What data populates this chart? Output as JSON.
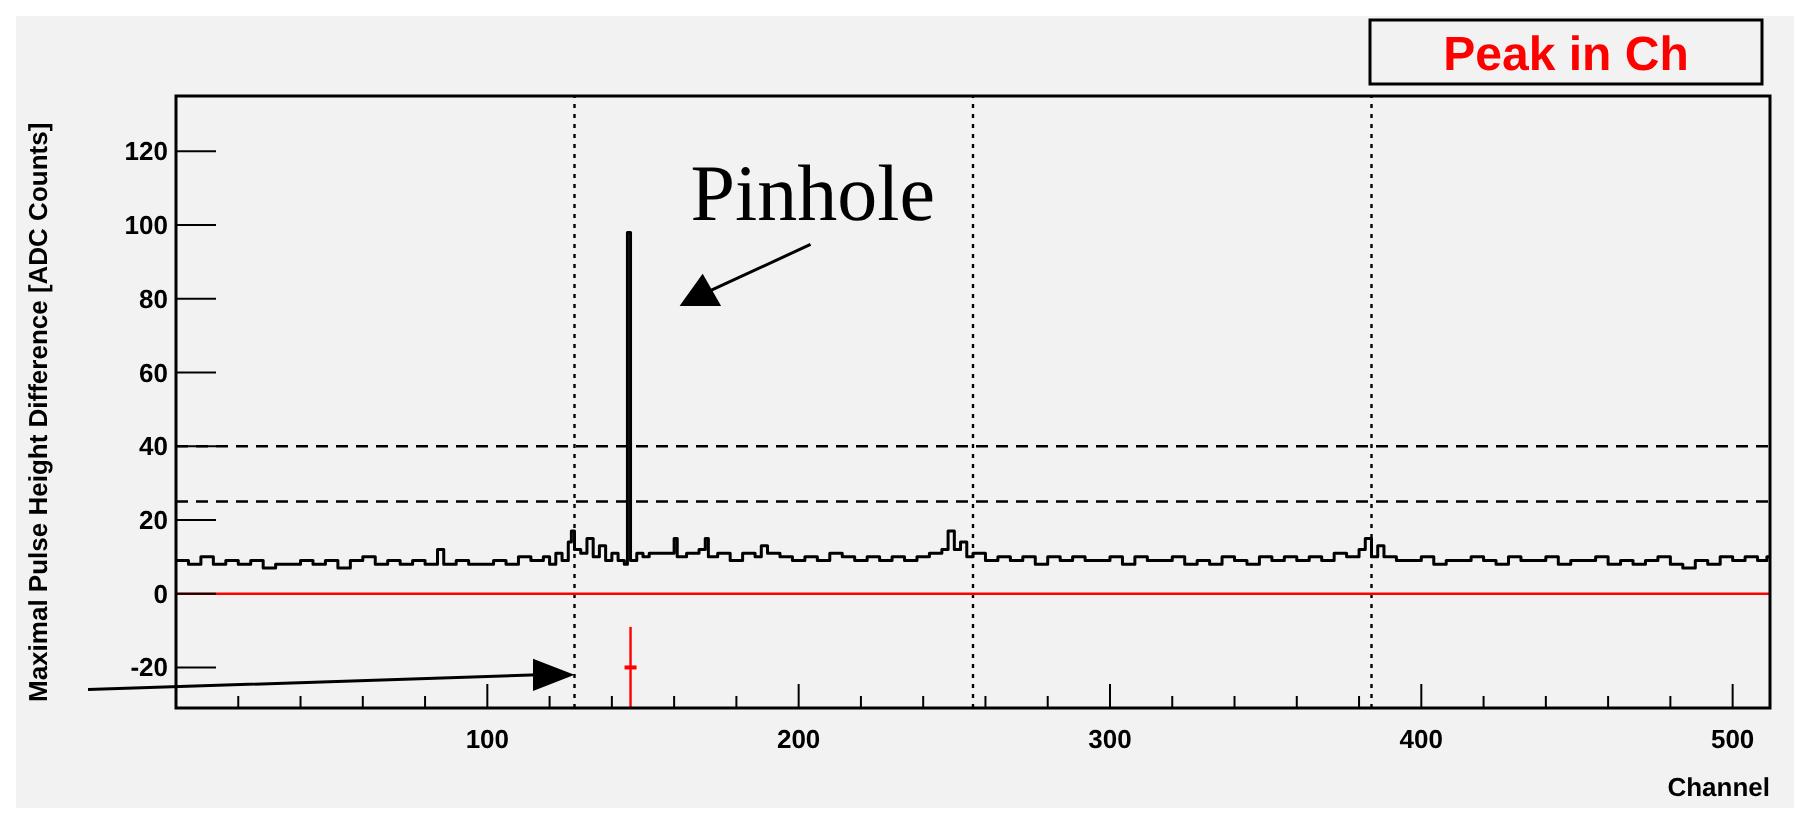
{
  "chart_data": {
    "type": "step",
    "xlabel": "Channel",
    "ylabel": "Maximal Pulse Height Difference [ADC Counts]",
    "xlim": [
      0,
      512
    ],
    "ylim": [
      -31,
      135
    ],
    "xticks": [
      {
        "value": 20,
        "label": null
      },
      {
        "value": 40,
        "label": null
      },
      {
        "value": 60,
        "label": null
      },
      {
        "value": 80,
        "label": null
      },
      100,
      {
        "value": 120,
        "label": null
      },
      {
        "value": 140,
        "label": null
      },
      {
        "value": 160,
        "label": null
      },
      {
        "value": 180,
        "label": null
      },
      200,
      {
        "value": 220,
        "label": null
      },
      {
        "value": 240,
        "label": null
      },
      {
        "value": 260,
        "label": null
      },
      {
        "value": 280,
        "label": null
      },
      300,
      {
        "value": 320,
        "label": null
      },
      {
        "value": 340,
        "label": null
      },
      {
        "value": 360,
        "label": null
      },
      {
        "value": 380,
        "label": null
      },
      400,
      {
        "value": 420,
        "label": null
      },
      {
        "value": 440,
        "label": null
      },
      {
        "value": 460,
        "label": null
      },
      {
        "value": 480,
        "label": null
      },
      500
    ],
    "yticks": [
      -20,
      0,
      20,
      40,
      60,
      80,
      100,
      120
    ],
    "series": [
      {
        "color": "#000000",
        "x": [
          0,
          4,
          8,
          12,
          16,
          20,
          24,
          28,
          32,
          36,
          40,
          44,
          48,
          52,
          56,
          60,
          64,
          68,
          72,
          76,
          80,
          84,
          86,
          90,
          94,
          98,
          102,
          106,
          110,
          114,
          118,
          120,
          122,
          124,
          126,
          127,
          128,
          130,
          132,
          134,
          136,
          138,
          140,
          142,
          144,
          145,
          146,
          148,
          150,
          152,
          156,
          160,
          161,
          164,
          168,
          170,
          171,
          174,
          178,
          182,
          186,
          188,
          190,
          194,
          198,
          202,
          206,
          210,
          214,
          218,
          222,
          226,
          230,
          234,
          238,
          242,
          246,
          248,
          250,
          252,
          254,
          256,
          260,
          264,
          268,
          272,
          276,
          280,
          284,
          288,
          292,
          296,
          300,
          304,
          308,
          312,
          316,
          320,
          324,
          328,
          332,
          336,
          340,
          344,
          348,
          352,
          356,
          360,
          364,
          368,
          372,
          376,
          380,
          382,
          384,
          386,
          388,
          392,
          396,
          400,
          404,
          408,
          412,
          416,
          420,
          424,
          428,
          432,
          436,
          440,
          444,
          448,
          452,
          456,
          460,
          464,
          468,
          472,
          476,
          480,
          484,
          488,
          492,
          496,
          500,
          504,
          508,
          511,
          512
        ],
        "values": [
          9,
          8,
          10,
          8,
          9,
          8,
          9,
          7,
          8,
          8,
          9,
          8,
          9,
          7,
          9,
          10,
          8,
          9,
          8,
          9,
          8,
          12,
          8,
          9,
          8,
          8,
          9,
          8,
          10,
          9,
          10,
          8,
          11,
          9,
          14,
          17,
          12,
          11,
          15,
          10,
          13,
          9,
          11,
          9,
          8,
          98,
          9,
          11,
          10,
          11,
          11,
          15,
          10,
          11,
          12,
          15,
          10,
          11,
          9,
          11,
          10,
          13,
          11,
          10,
          9,
          10,
          9,
          11,
          10,
          9,
          10,
          9,
          10,
          9,
          10,
          11,
          12,
          17,
          12,
          14,
          10,
          11,
          9,
          10,
          9,
          10,
          8,
          10,
          9,
          10,
          9,
          9,
          10,
          8,
          10,
          9,
          9,
          10,
          8,
          9,
          8,
          10,
          9,
          8,
          10,
          9,
          10,
          9,
          10,
          9,
          11,
          10,
          12,
          15,
          10,
          13,
          10,
          9,
          9,
          10,
          8,
          9,
          9,
          10,
          9,
          8,
          10,
          9,
          9,
          10,
          8,
          9,
          9,
          10,
          8,
          9,
          8,
          9,
          10,
          8,
          7,
          9,
          8,
          10,
          9,
          10,
          9,
          10,
          10
        ]
      },
      {
        "type": "scatter",
        "color": "#ff0000",
        "x": [
          146
        ],
        "values": [
          -20
        ],
        "errors": [
          11
        ]
      }
    ],
    "ref_lines": [
      {
        "axis": "x",
        "value": 128,
        "color": "#000000",
        "line_style": "dotted"
      },
      {
        "axis": "x",
        "value": 256,
        "color": "#000000",
        "line_style": "dotted"
      },
      {
        "axis": "x",
        "value": 384,
        "color": "#000000",
        "line_style": "dotted"
      },
      {
        "axis": "y",
        "value": 40,
        "color": "#000000",
        "line_style": "dashed"
      },
      {
        "axis": "y",
        "value": 25,
        "color": "#000000",
        "line_style": "dashed"
      },
      {
        "axis": "y",
        "value": 0,
        "color": "#ff0000",
        "line_style": "solid"
      }
    ],
    "annotations": [
      "Peak in Ch",
      {
        "text": "Pinhole",
        "x": 146,
        "y": 98
      }
    ]
  }
}
